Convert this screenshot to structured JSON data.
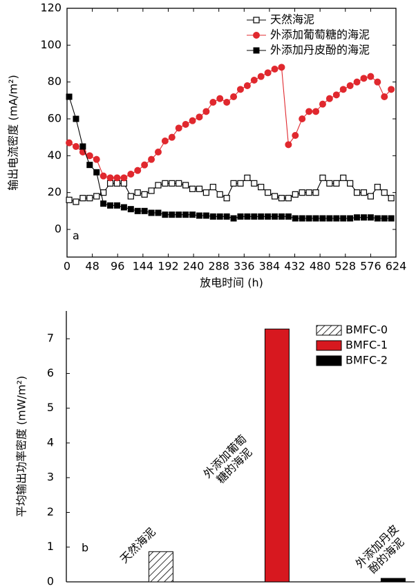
{
  "chart_data": [
    {
      "type": "line",
      "x_label": "放电时间 (h)",
      "y_label": "输出电流密度 (mA/m²)",
      "annotation": "a",
      "xlim": [
        0,
        624
      ],
      "xticks": [
        0,
        48,
        96,
        144,
        192,
        240,
        288,
        336,
        384,
        432,
        480,
        528,
        576,
        624
      ],
      "ylim": [
        -15,
        120
      ],
      "yticks": [
        0,
        20,
        40,
        60,
        80,
        100,
        120
      ],
      "legend": "upper right",
      "x": [
        4,
        17,
        30,
        43,
        56,
        69,
        82,
        95,
        108,
        121,
        134,
        147,
        160,
        173,
        186,
        199,
        212,
        225,
        238,
        251,
        264,
        277,
        290,
        303,
        316,
        329,
        342,
        355,
        368,
        381,
        394,
        407,
        420,
        433,
        446,
        459,
        472,
        485,
        498,
        511,
        524,
        537,
        550,
        563,
        576,
        589,
        602,
        615
      ],
      "series": [
        {
          "name": "天然海泥",
          "color": "#000000",
          "marker": "square-open",
          "values": [
            16,
            15,
            17,
            17,
            18,
            20,
            25,
            25,
            25,
            18,
            20,
            19,
            21,
            24,
            25,
            25,
            25,
            24,
            22,
            22,
            20,
            23,
            19,
            17,
            25,
            25,
            28,
            25,
            23,
            20,
            18,
            17,
            17,
            19,
            20,
            20,
            20,
            28,
            25,
            25,
            28,
            25,
            20,
            20,
            18,
            23,
            20,
            17
          ]
        },
        {
          "name": "外添加葡萄糖的海泥",
          "color": "#e0282e",
          "marker": "circle",
          "values": [
            47,
            45,
            42,
            40,
            38,
            29,
            28,
            28,
            28,
            30,
            32,
            35,
            38,
            42,
            48,
            50,
            55,
            57,
            59,
            61,
            64,
            69,
            71,
            69,
            72,
            76,
            78,
            81,
            83,
            85,
            87,
            88,
            46,
            51,
            60,
            64,
            64,
            68,
            71,
            73,
            76,
            78,
            80,
            82,
            83,
            80,
            72,
            76
          ]
        },
        {
          "name": "外添加丹皮酚的海泥",
          "color": "#000000",
          "marker": "square",
          "values": [
            72,
            60,
            45,
            35,
            31,
            14,
            13,
            13,
            12,
            11,
            10,
            10,
            9,
            9,
            8,
            8,
            8,
            8,
            8,
            7.5,
            7.5,
            7,
            7,
            7,
            6,
            7,
            7,
            7,
            7,
            7,
            7,
            7,
            7,
            6,
            6,
            6,
            6,
            6,
            6,
            6,
            6,
            6,
            6.5,
            6.5,
            6.5,
            6,
            6,
            6
          ]
        }
      ]
    },
    {
      "type": "bar",
      "y_label": "平均输出功率密度 (mW/m²)",
      "annotation": "b",
      "categories": [
        [
          "天然海泥"
        ],
        [
          "外添加葡萄",
          "糖的海泥"
        ],
        [
          "外添加丹皮",
          "酚的海泥"
        ]
      ],
      "ylim": [
        0,
        7.8
      ],
      "yticks": [
        0,
        1,
        2,
        3,
        4,
        5,
        6,
        7
      ],
      "legend": "upper right",
      "series": [
        {
          "name": "BMFC-0",
          "color": "#ffffff",
          "hatch": true,
          "values": [
            0.87,
            null,
            null
          ]
        },
        {
          "name": "BMFC-1",
          "color": "#d7181f",
          "values": [
            null,
            7.28,
            null
          ]
        },
        {
          "name": "BMFC-2",
          "color": "#000000",
          "values": [
            null,
            null,
            0.1
          ]
        }
      ]
    }
  ]
}
